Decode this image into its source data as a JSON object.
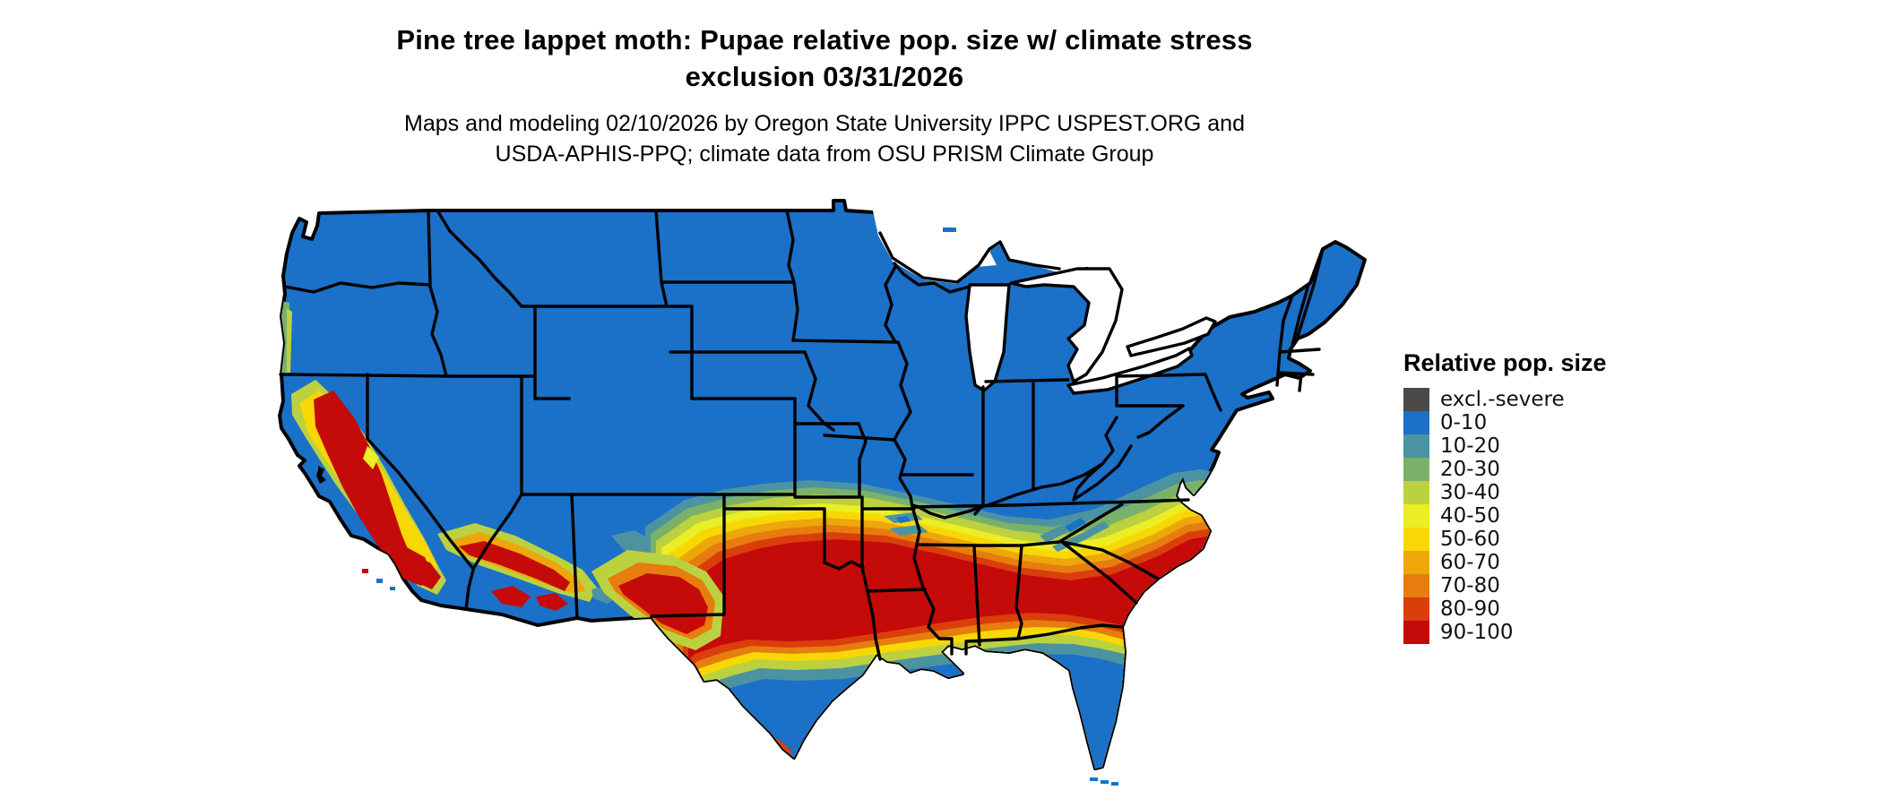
{
  "header": {
    "title_line1": "Pine tree lappet moth: Pupae relative pop. size w/ climate stress",
    "title_line2": "exclusion 03/31/2026",
    "subtitle_line1": "Maps and modeling 02/10/2026 by Oregon State University IPPC USPEST.ORG and",
    "subtitle_line2": "USDA-APHIS-PPQ; climate data from OSU PRISM Climate Group"
  },
  "legend": {
    "title": "Relative pop. size",
    "items": [
      {
        "label": "excl.-severe",
        "color": "#4a4a4a"
      },
      {
        "label": "0-10",
        "color": "#1b70c8"
      },
      {
        "label": "10-20",
        "color": "#4c93a2"
      },
      {
        "label": "20-30",
        "color": "#7ab169"
      },
      {
        "label": "30-40",
        "color": "#bcd13f"
      },
      {
        "label": "40-50",
        "color": "#ebed25"
      },
      {
        "label": "50-60",
        "color": "#f7d805"
      },
      {
        "label": "60-70",
        "color": "#eda70b"
      },
      {
        "label": "70-80",
        "color": "#e67d0e"
      },
      {
        "label": "80-90",
        "color": "#da3e0c"
      },
      {
        "label": "90-100",
        "color": "#c50a0a"
      }
    ]
  },
  "map": {
    "region": "Continental United States",
    "border_color": "#000000",
    "water_color": "#ffffff"
  }
}
